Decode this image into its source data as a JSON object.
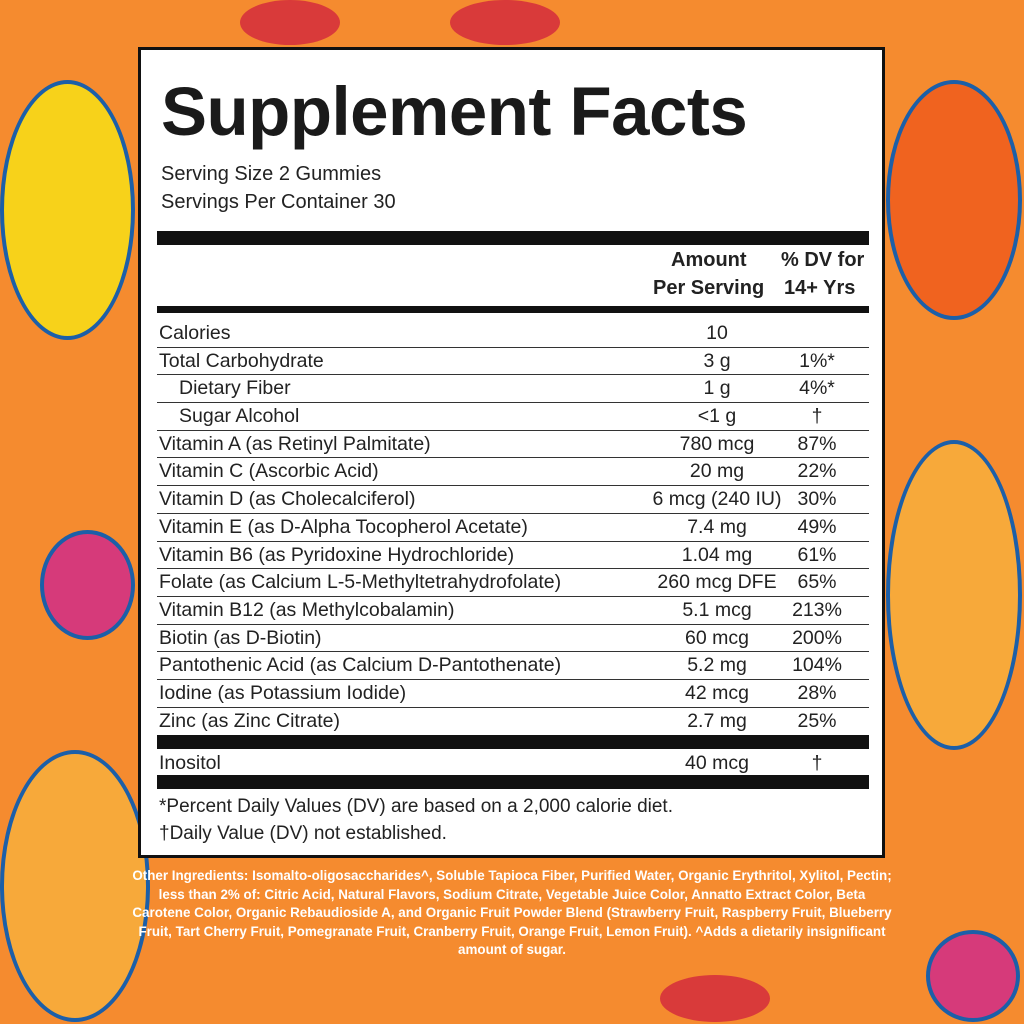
{
  "colors": {
    "background": "#f58b2f",
    "panel": "#ffffff",
    "text": "#222222"
  },
  "title": "Supplement Facts",
  "serving_size": "Serving Size 2 Gummies",
  "servings_per_container": "Servings Per Container 30",
  "header": {
    "amount_line1": "Amount",
    "amount_line2": "Per Serving",
    "dv_line1": "% DV for",
    "dv_line2": "14+ Yrs"
  },
  "rows": [
    {
      "name": "Calories",
      "amount": "10",
      "dv": ""
    },
    {
      "name": "Total Carbohydrate",
      "amount": "3 g",
      "dv": "1%*"
    },
    {
      "name": "Dietary Fiber",
      "amount": "1 g",
      "dv": "4%*",
      "indent": true
    },
    {
      "name": "Sugar Alcohol",
      "amount": "<1 g",
      "dv": "†",
      "indent": true
    },
    {
      "name": "Vitamin A (as Retinyl Palmitate)",
      "amount": "780 mcg",
      "dv": "87%"
    },
    {
      "name": "Vitamin C (Ascorbic Acid)",
      "amount": "20 mg",
      "dv": "22%"
    },
    {
      "name": "Vitamin D (as Cholecalciferol)",
      "amount": "6 mcg (240 IU)",
      "dv": "30%"
    },
    {
      "name": "Vitamin E (as D-Alpha Tocopherol Acetate)",
      "amount": "7.4 mg",
      "dv": "49%"
    },
    {
      "name": "Vitamin B6 (as Pyridoxine Hydrochloride)",
      "amount": "1.04 mg",
      "dv": "61%"
    },
    {
      "name": "Folate (as Calcium L-5-Methyltetrahydrofolate)",
      "amount": "260 mcg DFE",
      "dv": "65%"
    },
    {
      "name": "Vitamin B12 (as Methylcobalamin)",
      "amount": "5.1 mcg",
      "dv": "213%"
    },
    {
      "name": "Biotin (as D-Biotin)",
      "amount": "60 mcg",
      "dv": "200%"
    },
    {
      "name": "Pantothenic Acid (as Calcium D-Pantothenate)",
      "amount": "5.2 mg",
      "dv": "104%"
    },
    {
      "name": "Iodine (as Potassium Iodide)",
      "amount": "42 mcg",
      "dv": "28%"
    },
    {
      "name": "Zinc (as Zinc Citrate)",
      "amount": "2.7 mg",
      "dv": "25%"
    }
  ],
  "other_row": {
    "name": "Inositol",
    "amount": "40 mcg",
    "dv": "†"
  },
  "footnote1": "*Percent Daily Values (DV) are based on a 2,000 calorie diet.",
  "footnote2": "†Daily Value (DV) not established.",
  "other_ingredients": "Other Ingredients: Isomalto-oligosaccharides^, Soluble Tapioca Fiber, Purified Water, Organic Erythritol, Xylitol, Pectin; less than 2% of: Citric Acid, Natural Flavors, Sodium Citrate, Vegetable Juice Color, Annatto Extract Color, Beta Carotene Color, Organic Rebaudioside A, and Organic Fruit Powder Blend (Strawberry Fruit, Raspberry Fruit, Blueberry Fruit, Tart Cherry Fruit, Pomegranate Fruit, Cranberry Fruit, Orange Fruit, Lemon Fruit).  ^Adds a dietarily insignificant amount of sugar."
}
